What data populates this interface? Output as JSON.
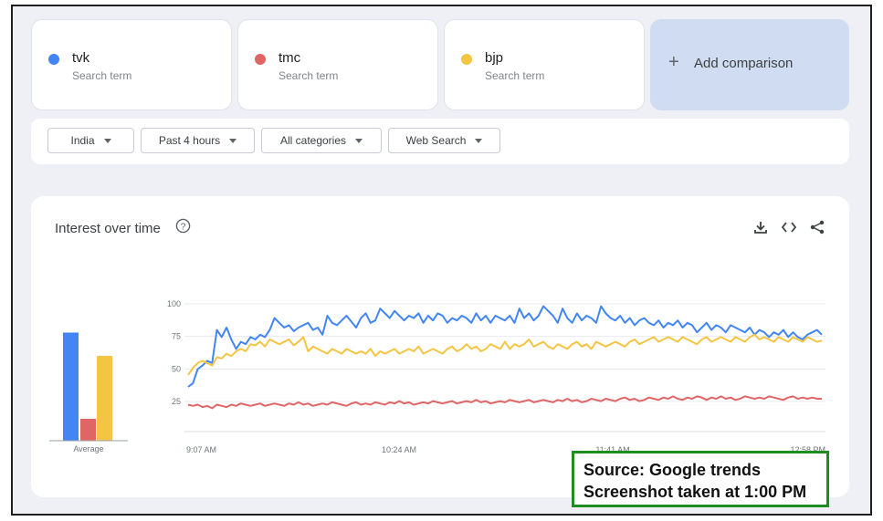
{
  "terms": [
    {
      "name": "tvk",
      "sub": "Search term",
      "color": "#4285f4"
    },
    {
      "name": "tmc",
      "sub": "Search term",
      "color": "#e06666"
    },
    {
      "name": "bjp",
      "sub": "Search term",
      "color": "#f4c542"
    }
  ],
  "add_comparison": {
    "icon": "plus-icon",
    "label": "Add comparison"
  },
  "filters": {
    "region": "India",
    "time": "Past 4 hours",
    "category": "All categories",
    "search_type": "Web Search"
  },
  "chart_card": {
    "title": "Interest over time",
    "icons": [
      "help-icon",
      "download-icon",
      "embed-icon",
      "share-icon"
    ]
  },
  "chart_data": {
    "type": "line",
    "title": "Interest over time",
    "x_ticks": [
      "9:07 AM",
      "10:24 AM",
      "11:41 AM",
      "12:58 PM"
    ],
    "y_ticks": [
      25,
      50,
      75,
      100
    ],
    "ylim": [
      25,
      100
    ],
    "grid": true,
    "series": [
      {
        "name": "tvk",
        "color": "#4285f4",
        "values": [
          30,
          33,
          45,
          48,
          52,
          50,
          78,
          72,
          80,
          70,
          62,
          68,
          66,
          72,
          70,
          74,
          72,
          78,
          88,
          84,
          80,
          82,
          77,
          80,
          82,
          84,
          78,
          80,
          74,
          90,
          84,
          82,
          86,
          90,
          85,
          80,
          88,
          92,
          84,
          86,
          96,
          92,
          88,
          94,
          90,
          86,
          90,
          88,
          92,
          84,
          90,
          86,
          92,
          90,
          84,
          88,
          86,
          90,
          88,
          84,
          92,
          86,
          90,
          84,
          90,
          88,
          86,
          90,
          84,
          96,
          88,
          92,
          86,
          90,
          98,
          94,
          90,
          84,
          96,
          88,
          84,
          92,
          86,
          90,
          88,
          84,
          98,
          92,
          88,
          86,
          90,
          84,
          88,
          82,
          86,
          88,
          84,
          82,
          86,
          80,
          84,
          82,
          86,
          80,
          84,
          82,
          76,
          80,
          84,
          78,
          82,
          80,
          76,
          82,
          80,
          78,
          76,
          80,
          74,
          78,
          76,
          72,
          76,
          74,
          78,
          72,
          76,
          72,
          70,
          74,
          76,
          78,
          74
        ]
      },
      {
        "name": "tmc",
        "color": "#e06666",
        "values": [
          15,
          14,
          15,
          13,
          14,
          12,
          15,
          14,
          13,
          15,
          14,
          16,
          15,
          14,
          15,
          16,
          14,
          15,
          16,
          15,
          14,
          16,
          15,
          17,
          15,
          16,
          14,
          15,
          16,
          15,
          17,
          16,
          15,
          14,
          16,
          17,
          15,
          16,
          15,
          17,
          16,
          15,
          17,
          16,
          18,
          16,
          17,
          15,
          16,
          17,
          16,
          18,
          17,
          16,
          17,
          18,
          16,
          17,
          18,
          17,
          19,
          17,
          18,
          16,
          17,
          18,
          17,
          19,
          18,
          17,
          18,
          19,
          17,
          18,
          19,
          18,
          17,
          19,
          18,
          20,
          18,
          19,
          17,
          18,
          20,
          19,
          18,
          20,
          19,
          18,
          20,
          21,
          19,
          20,
          18,
          19,
          21,
          20,
          19,
          21,
          20,
          22,
          20,
          19,
          21,
          20,
          22,
          21,
          19,
          21,
          20,
          22,
          20,
          21,
          19,
          20,
          22,
          21,
          20,
          21,
          20,
          22,
          21,
          20,
          19,
          21,
          22,
          20,
          21,
          20,
          21,
          20,
          20
        ]
      },
      {
        "name": "bjp",
        "color": "#f4c542",
        "values": [
          40,
          46,
          50,
          52,
          50,
          48,
          55,
          54,
          58,
          56,
          60,
          62,
          60,
          66,
          65,
          68,
          64,
          70,
          68,
          66,
          68,
          70,
          65,
          68,
          72,
          60,
          64,
          62,
          60,
          58,
          62,
          60,
          58,
          62,
          60,
          58,
          60,
          58,
          62,
          56,
          60,
          58,
          60,
          62,
          58,
          60,
          62,
          60,
          64,
          58,
          60,
          62,
          60,
          58,
          62,
          64,
          60,
          62,
          66,
          62,
          64,
          60,
          62,
          66,
          64,
          62,
          68,
          62,
          66,
          64,
          66,
          70,
          64,
          66,
          68,
          64,
          62,
          66,
          64,
          62,
          66,
          68,
          64,
          66,
          62,
          68,
          66,
          64,
          66,
          68,
          66,
          64,
          68,
          70,
          66,
          68,
          70,
          72,
          68,
          70,
          72,
          70,
          68,
          72,
          70,
          68,
          66,
          70,
          72,
          68,
          70,
          72,
          70,
          68,
          72,
          70,
          68,
          72,
          74,
          70,
          72,
          70,
          68,
          72,
          70,
          68,
          72,
          70,
          68,
          72,
          70,
          68,
          69
        ]
      }
    ],
    "average_bars": [
      {
        "name": "tvk",
        "value": 79,
        "color": "#4285f4"
      },
      {
        "name": "tmc",
        "value": 16,
        "color": "#e06666"
      },
      {
        "name": "bjp",
        "value": 62,
        "color": "#f4c542"
      }
    ],
    "average_label": "Average"
  },
  "source_note": {
    "line1": "Source: Google trends",
    "line2": "Screenshot taken at 1:00 PM"
  }
}
